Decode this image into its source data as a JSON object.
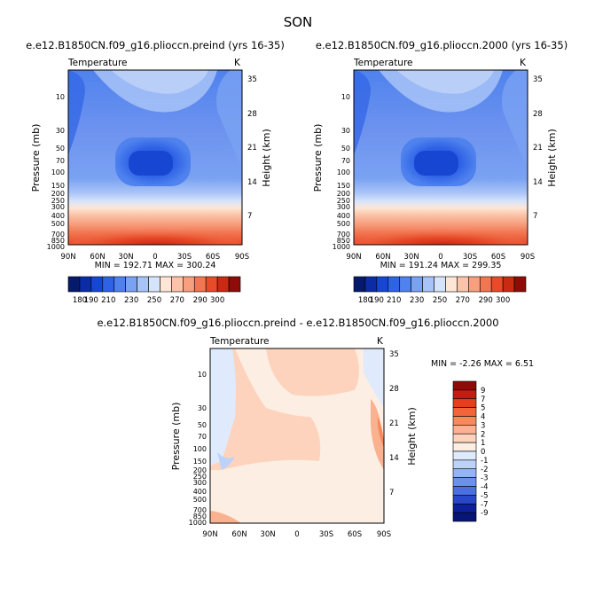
{
  "figure_title": "SON",
  "chart_data": [
    {
      "type": "heatmap",
      "title": "e.e12.B1850CN.f09_g16.plioccn.preind (yrs 16-35)",
      "variable": "Temperature",
      "units": "K",
      "xlabel": "",
      "ylabel": "Pressure (mb)",
      "y2label": "Height (km)",
      "x_ticks": [
        "90N",
        "60N",
        "30N",
        "0",
        "30S",
        "60S",
        "90S"
      ],
      "y_ticks": [
        "10",
        "30",
        "50",
        "70",
        "100",
        "150",
        "200",
        "250",
        "300",
        "400",
        "500",
        "700",
        "850",
        "1000"
      ],
      "y2_ticks": [
        "35",
        "28",
        "21",
        "14",
        "7"
      ],
      "stats": "MIN = 192.71    MAX = 300.24",
      "colorbar_levels": [
        "180",
        "190",
        "200",
        "210",
        "220",
        "230",
        "240",
        "250",
        "260",
        "270",
        "280",
        "290",
        "300"
      ],
      "colorbar_labels": [
        "180",
        "190",
        "210",
        "230",
        "250",
        "270",
        "290",
        "300"
      ],
      "colorbar_colors": [
        "#061a6b",
        "#0b2ca6",
        "#1747d2",
        "#2f63e6",
        "#4f82ee",
        "#7aa2f2",
        "#a8c3f7",
        "#d6e4fb",
        "#fde6d6",
        "#fbc3a8",
        "#f79f7f",
        "#f27652",
        "#e84b28",
        "#c82a12",
        "#8e0c08"
      ]
    },
    {
      "type": "heatmap",
      "title": "e.e12.B1850CN.f09_g16.plioccn.2000 (yrs 16-35)",
      "variable": "Temperature",
      "units": "K",
      "xlabel": "",
      "ylabel": "Pressure (mb)",
      "y2label": "Height (km)",
      "x_ticks": [
        "90N",
        "60N",
        "30N",
        "0",
        "30S",
        "60S",
        "90S"
      ],
      "y_ticks": [
        "10",
        "30",
        "50",
        "70",
        "100",
        "150",
        "200",
        "250",
        "300",
        "400",
        "500",
        "700",
        "850",
        "1000"
      ],
      "y2_ticks": [
        "35",
        "28",
        "21",
        "14",
        "7"
      ],
      "stats": "MIN = 191.24    MAX = 299.35",
      "colorbar_levels": [
        "180",
        "190",
        "200",
        "210",
        "220",
        "230",
        "240",
        "250",
        "260",
        "270",
        "280",
        "290",
        "300"
      ],
      "colorbar_labels": [
        "180",
        "190",
        "210",
        "230",
        "250",
        "270",
        "290",
        "300"
      ]
    },
    {
      "type": "heatmap",
      "title": "e.e12.B1850CN.f09_g16.plioccn.preind - e.e12.B1850CN.f09_g16.plioccn.2000",
      "variable": "Temperature",
      "units": "K",
      "ylabel": "Pressure (mb)",
      "y2label": "Height (km)",
      "x_ticks": [
        "90N",
        "60N",
        "30N",
        "0",
        "30S",
        "60S",
        "90S"
      ],
      "y_ticks": [
        "10",
        "30",
        "50",
        "70",
        "100",
        "150",
        "200",
        "250",
        "300",
        "400",
        "500",
        "700",
        "850",
        "1000"
      ],
      "y2_ticks": [
        "35",
        "28",
        "21",
        "14",
        "7"
      ],
      "stats": "MIN =  -2.26   MAX =   6.51",
      "colorbar_labels": [
        "9",
        "7",
        "5",
        "4",
        "3",
        "2",
        "1",
        "0",
        "-1",
        "-2",
        "-3",
        "-4",
        "-5",
        "-7",
        "-9"
      ],
      "colorbar_colors": [
        "#8e0c08",
        "#c21d0e",
        "#e2401c",
        "#f2643a",
        "#f78a5c",
        "#fab18f",
        "#fdd3bd",
        "#fdeee3",
        "#dfeafc",
        "#bcd2f9",
        "#94b4f3",
        "#6d91eb",
        "#4a6fe0",
        "#2947c9",
        "#0f219a",
        "#071575"
      ]
    }
  ]
}
